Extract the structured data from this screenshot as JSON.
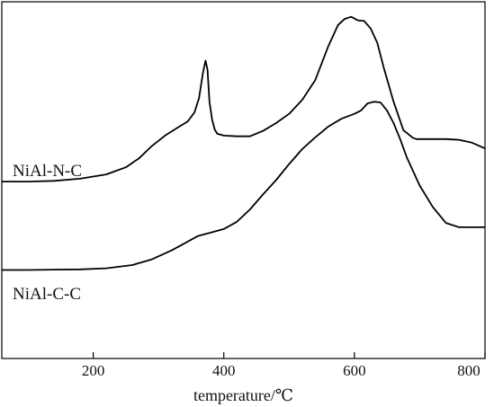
{
  "chart_data": {
    "type": "line",
    "xlabel": "temperature/℃",
    "ylabel": "",
    "xlim": [
      60,
      800
    ],
    "ylim": [
      0,
      100
    ],
    "x_ticks": [
      200,
      400,
      600,
      800
    ],
    "grid": false,
    "colors": {
      "line": "#000000",
      "frame": "#000000",
      "background": "#ffffff"
    },
    "series": [
      {
        "name": "NiAl-N-C",
        "x": [
          60,
          100,
          140,
          180,
          220,
          250,
          270,
          290,
          310,
          330,
          345,
          355,
          362,
          368,
          372,
          375,
          378,
          382,
          386,
          390,
          400,
          420,
          440,
          460,
          480,
          500,
          520,
          540,
          560,
          575,
          585,
          595,
          605,
          615,
          625,
          635,
          645,
          660,
          675,
          690,
          695,
          700,
          720,
          740,
          760,
          780,
          800
        ],
        "y": [
          49.6,
          49.6,
          49.8,
          50.4,
          51.6,
          53.6,
          56.1,
          59.6,
          62.5,
          64.8,
          66.5,
          69.0,
          73.0,
          80.0,
          83.5,
          81.0,
          72.0,
          67.0,
          64.2,
          63.0,
          62.5,
          62.3,
          62.3,
          63.8,
          66.0,
          68.6,
          72.5,
          78.0,
          87.5,
          93.5,
          95.2,
          95.8,
          94.8,
          94.6,
          92.5,
          88.5,
          81.5,
          72.0,
          64.0,
          61.8,
          61.5,
          61.5,
          61.5,
          61.5,
          61.3,
          60.5,
          58.9
        ]
      },
      {
        "name": "NiAl-C-C",
        "x": [
          60,
          100,
          140,
          180,
          220,
          260,
          290,
          320,
          340,
          360,
          380,
          400,
          420,
          440,
          460,
          480,
          500,
          520,
          540,
          560,
          580,
          600,
          610,
          620,
          630,
          640,
          650,
          660,
          670,
          680,
          700,
          720,
          740,
          760,
          780,
          800
        ],
        "y": [
          24.8,
          24.8,
          24.9,
          25.0,
          25.3,
          26.2,
          27.8,
          30.3,
          32.3,
          34.3,
          35.3,
          36.3,
          38.3,
          41.8,
          46.0,
          50.0,
          54.5,
          58.7,
          62.0,
          65.0,
          67.2,
          68.6,
          69.5,
          71.5,
          72.0,
          71.8,
          69.5,
          66.0,
          61.5,
          56.5,
          48.5,
          42.5,
          38.0,
          36.8,
          36.8,
          36.8
        ]
      }
    ]
  }
}
